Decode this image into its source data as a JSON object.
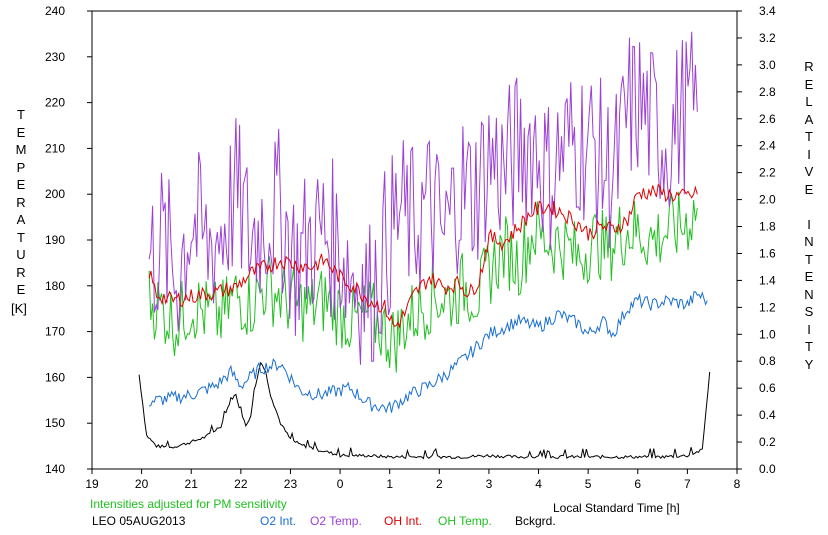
{
  "chart_data": {
    "type": "line",
    "title": "",
    "annotation": "Intensities adjusted for PM sensitivity",
    "station_date": "LEO 05AUG2013",
    "xlabel": "Local Standard Time [h]",
    "ylabel_left": "TEMPERATURE",
    "ylabel_left_unit": "[K]",
    "ylabel_right": "RELATIVE INTENSITY",
    "x_ticks": [
      19,
      20,
      21,
      22,
      23,
      0,
      1,
      2,
      3,
      4,
      5,
      6,
      7,
      8
    ],
    "xlim": [
      19,
      32
    ],
    "y_left_ticks": [
      140,
      150,
      160,
      170,
      180,
      190,
      200,
      210,
      220,
      230,
      240
    ],
    "ylim_left": [
      140,
      240
    ],
    "y_right_ticks": [
      "0.0",
      "0.2",
      "0.4",
      "0.6",
      "0.8",
      "1.0",
      "1.2",
      "1.4",
      "1.6",
      "1.8",
      "2.0",
      "2.2",
      "2.4",
      "2.6",
      "2.8",
      "3.0",
      "3.2",
      "3.4"
    ],
    "ylim_right": [
      0,
      3.4
    ],
    "grid": false,
    "legend_position": "bottom",
    "colors": {
      "O2 Int.": "#1a6fd0",
      "O2 Temp.": "#9c3fd6",
      "OH Int.": "#e00000",
      "OH Temp.": "#20c020",
      "Bckgrd.": "#000000"
    },
    "series": [
      {
        "name": "O2 Int.",
        "axis": "right",
        "color": "#1a6fd0",
        "x": [
          20.15,
          20.5,
          21.0,
          21.5,
          21.8,
          22.0,
          22.4,
          22.8,
          23.2,
          23.6,
          24.2,
          24.6,
          25.0,
          25.4,
          25.8,
          26.2,
          26.6,
          27.0,
          27.3,
          27.6,
          28.0,
          28.4,
          28.8,
          29.0,
          29.3,
          29.5,
          29.8,
          30.0,
          30.3,
          30.6,
          31.0,
          31.2,
          31.4
        ],
        "values": [
          0.5,
          0.52,
          0.55,
          0.62,
          0.72,
          0.62,
          0.75,
          0.78,
          0.58,
          0.55,
          0.6,
          0.48,
          0.45,
          0.55,
          0.62,
          0.72,
          0.85,
          1.0,
          1.05,
          1.1,
          1.05,
          1.15,
          1.08,
          1.0,
          1.1,
          1.0,
          1.2,
          1.25,
          1.22,
          1.25,
          1.22,
          1.3,
          1.25
        ]
      },
      {
        "name": "O2 Temp.",
        "axis": "left",
        "color": "#9c3fd6",
        "x": [
          20.15,
          20.4,
          20.7,
          21.0,
          21.3,
          21.6,
          21.9,
          22.2,
          22.5,
          22.8,
          23.1,
          23.4,
          23.7,
          24.0,
          24.3,
          24.6,
          24.9,
          25.2,
          25.5,
          25.8,
          26.1,
          26.4,
          26.7,
          27.0,
          27.3,
          27.6,
          27.9,
          28.2,
          28.5,
          28.8,
          29.1,
          29.4,
          29.6,
          29.8,
          30.0,
          30.3,
          30.6,
          30.9,
          31.2
        ],
        "values": [
          185,
          190,
          182,
          195,
          188,
          192,
          200,
          190,
          195,
          197,
          185,
          190,
          192,
          188,
          182,
          178,
          188,
          196,
          193,
          198,
          190,
          202,
          200,
          208,
          205,
          210,
          212,
          204,
          210,
          212,
          210,
          205,
          206,
          218,
          220,
          215,
          212,
          218,
          218
        ]
      },
      {
        "name": "OH Int.",
        "axis": "right",
        "color": "#e00000",
        "x": [
          20.15,
          20.3,
          20.6,
          21.0,
          21.3,
          21.6,
          21.9,
          22.2,
          22.5,
          22.8,
          23.1,
          23.4,
          23.7,
          24.0,
          24.3,
          24.6,
          24.9,
          25.1,
          25.3,
          25.5,
          25.8,
          26.1,
          26.4,
          26.6,
          26.8,
          27.0,
          27.3,
          27.6,
          27.9,
          28.2,
          28.5,
          28.8,
          29.0,
          29.3,
          29.5,
          29.8,
          30.0,
          30.3,
          30.6,
          30.9,
          31.2
        ],
        "values": [
          1.46,
          1.3,
          1.25,
          1.28,
          1.3,
          1.32,
          1.35,
          1.45,
          1.5,
          1.55,
          1.52,
          1.5,
          1.55,
          1.42,
          1.35,
          1.25,
          1.2,
          1.05,
          1.15,
          1.3,
          1.42,
          1.35,
          1.38,
          1.3,
          1.4,
          1.72,
          1.68,
          1.8,
          1.92,
          1.95,
          1.9,
          1.82,
          1.75,
          1.8,
          1.78,
          1.85,
          2.05,
          2.06,
          2.04,
          2.02,
          2.04
        ]
      },
      {
        "name": "OH Temp.",
        "axis": "left",
        "color": "#20c020",
        "x": [
          20.15,
          20.4,
          20.7,
          21.0,
          21.3,
          21.6,
          21.9,
          22.2,
          22.5,
          22.8,
          23.1,
          23.4,
          23.7,
          24.0,
          24.3,
          24.6,
          24.9,
          25.1,
          25.3,
          25.6,
          25.9,
          26.2,
          26.5,
          26.8,
          27.0,
          27.3,
          27.6,
          27.9,
          28.2,
          28.5,
          28.8,
          29.1,
          29.4,
          29.6,
          29.8,
          30.0,
          30.3,
          30.6,
          30.9,
          31.2
        ],
        "values": [
          177,
          175,
          172,
          176,
          174,
          173,
          178,
          176,
          180,
          178,
          176,
          175,
          177,
          174,
          172,
          174,
          170,
          168,
          172,
          175,
          178,
          177,
          180,
          178,
          183,
          188,
          185,
          192,
          190,
          189,
          186,
          190,
          188,
          191,
          192,
          192,
          190,
          192,
          193,
          197
        ]
      },
      {
        "name": "Bckgrd.",
        "axis": "right",
        "color": "#000000",
        "x": [
          19.95,
          20.1,
          20.3,
          20.6,
          21.0,
          21.3,
          21.6,
          21.8,
          21.9,
          22.0,
          22.1,
          22.2,
          22.3,
          22.4,
          22.5,
          22.6,
          22.8,
          23.0,
          23.2,
          23.6,
          24.0,
          24.5,
          25.0,
          25.5,
          26.0,
          26.5,
          27.0,
          27.5,
          28.0,
          28.5,
          29.0,
          29.5,
          30.0,
          30.5,
          31.0,
          31.3,
          31.45
        ],
        "values": [
          0.7,
          0.25,
          0.17,
          0.16,
          0.2,
          0.24,
          0.32,
          0.52,
          0.55,
          0.42,
          0.32,
          0.4,
          0.62,
          0.8,
          0.72,
          0.55,
          0.34,
          0.22,
          0.18,
          0.14,
          0.1,
          0.1,
          0.09,
          0.09,
          0.09,
          0.09,
          0.1,
          0.09,
          0.09,
          0.09,
          0.09,
          0.09,
          0.09,
          0.09,
          0.1,
          0.14,
          0.72
        ]
      }
    ]
  }
}
